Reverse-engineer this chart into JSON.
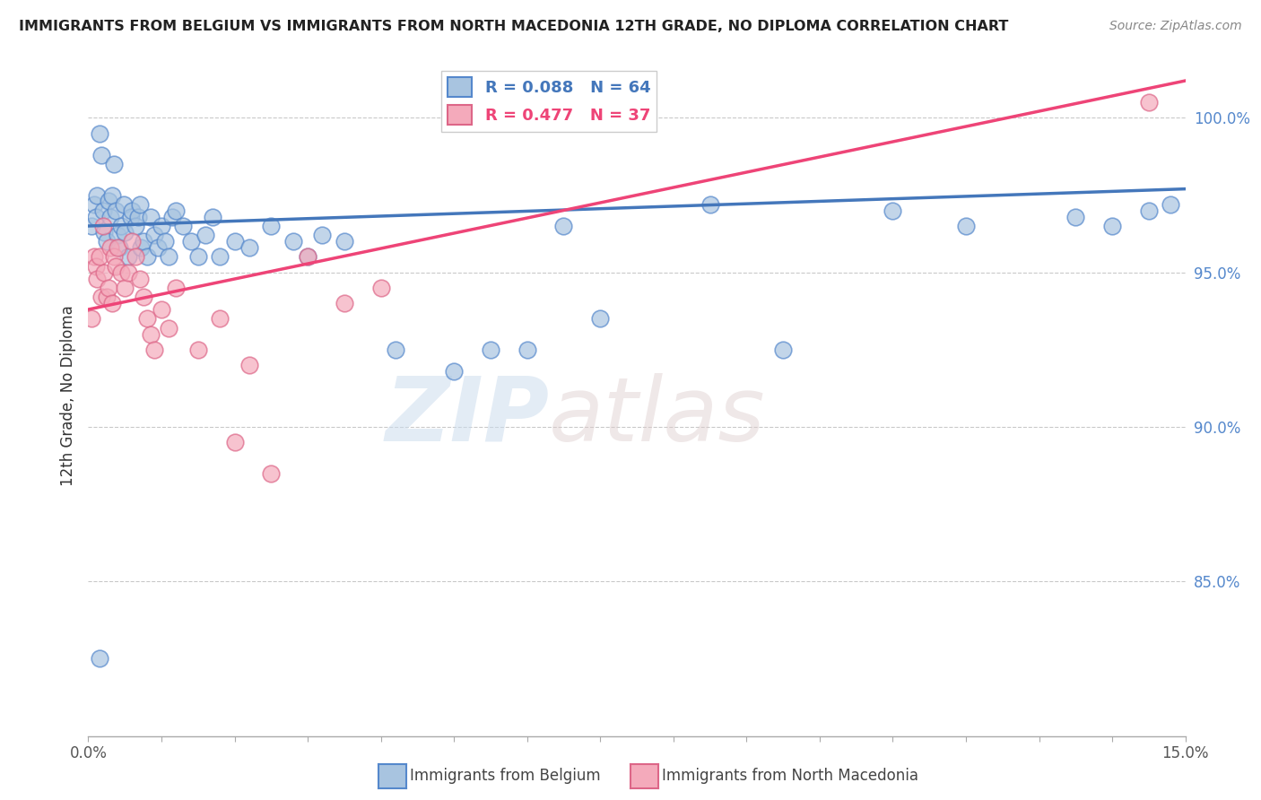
{
  "title": "IMMIGRANTS FROM BELGIUM VS IMMIGRANTS FROM NORTH MACEDONIA 12TH GRADE, NO DIPLOMA CORRELATION CHART",
  "source": "Source: ZipAtlas.com",
  "xlabel_legend1": "Immigrants from Belgium",
  "xlabel_legend2": "Immigrants from North Macedonia",
  "ylabel": "12th Grade, No Diploma",
  "xlim": [
    0.0,
    15.0
  ],
  "ylim": [
    80.0,
    102.0
  ],
  "yticks": [
    85.0,
    90.0,
    95.0,
    100.0
  ],
  "ytick_labels": [
    "85.0%",
    "90.0%",
    "95.0%",
    "100.0%"
  ],
  "color_belgium": "#A8C4E0",
  "color_macedonia": "#F4AABB",
  "color_belgium_edge": "#5588CC",
  "color_macedonia_edge": "#DD6688",
  "color_belgium_line": "#4477BB",
  "color_macedonia_line": "#EE4477",
  "R_belgium": 0.088,
  "N_belgium": 64,
  "R_macedonia": 0.477,
  "N_macedonia": 37,
  "watermark_zip": "ZIP",
  "watermark_atlas": "atlas",
  "background_color": "#FFFFFF",
  "bel_trend_x0": 0.0,
  "bel_trend_y0": 96.5,
  "bel_trend_x1": 15.0,
  "bel_trend_y1": 97.7,
  "mac_trend_x0": 0.0,
  "mac_trend_y0": 93.8,
  "mac_trend_x1": 15.0,
  "mac_trend_y1": 101.2,
  "bel_x": [
    0.05,
    0.08,
    0.1,
    0.12,
    0.15,
    0.18,
    0.2,
    0.22,
    0.25,
    0.28,
    0.3,
    0.32,
    0.35,
    0.38,
    0.4,
    0.42,
    0.45,
    0.48,
    0.5,
    0.55,
    0.58,
    0.6,
    0.65,
    0.68,
    0.7,
    0.72,
    0.75,
    0.8,
    0.85,
    0.9,
    0.95,
    1.0,
    1.05,
    1.1,
    1.15,
    1.2,
    1.3,
    1.4,
    1.5,
    1.6,
    1.7,
    1.8,
    2.0,
    2.2,
    2.5,
    2.8,
    3.0,
    3.2,
    3.5,
    4.2,
    5.0,
    5.5,
    6.0,
    6.5,
    7.0,
    8.5,
    9.5,
    11.0,
    12.0,
    13.5,
    14.0,
    14.5,
    14.8,
    0.15
  ],
  "bel_y": [
    96.5,
    97.2,
    96.8,
    97.5,
    99.5,
    98.8,
    97.0,
    96.3,
    96.0,
    97.3,
    96.8,
    97.5,
    98.5,
    97.0,
    96.2,
    95.8,
    96.5,
    97.2,
    96.3,
    95.5,
    96.8,
    97.0,
    96.5,
    96.8,
    97.2,
    95.8,
    96.0,
    95.5,
    96.8,
    96.2,
    95.8,
    96.5,
    96.0,
    95.5,
    96.8,
    97.0,
    96.5,
    96.0,
    95.5,
    96.2,
    96.8,
    95.5,
    96.0,
    95.8,
    96.5,
    96.0,
    95.5,
    96.2,
    96.0,
    92.5,
    91.8,
    92.5,
    92.5,
    96.5,
    93.5,
    97.2,
    92.5,
    97.0,
    96.5,
    96.8,
    96.5,
    97.0,
    97.2,
    82.5
  ],
  "mac_x": [
    0.05,
    0.08,
    0.1,
    0.12,
    0.15,
    0.18,
    0.2,
    0.22,
    0.25,
    0.28,
    0.3,
    0.32,
    0.35,
    0.38,
    0.4,
    0.45,
    0.5,
    0.55,
    0.6,
    0.65,
    0.7,
    0.75,
    0.8,
    0.85,
    0.9,
    1.0,
    1.1,
    1.2,
    1.5,
    1.8,
    2.0,
    2.2,
    2.5,
    3.0,
    3.5,
    4.0,
    14.5
  ],
  "mac_y": [
    93.5,
    95.5,
    95.2,
    94.8,
    95.5,
    94.2,
    96.5,
    95.0,
    94.2,
    94.5,
    95.8,
    94.0,
    95.5,
    95.2,
    95.8,
    95.0,
    94.5,
    95.0,
    96.0,
    95.5,
    94.8,
    94.2,
    93.5,
    93.0,
    92.5,
    93.8,
    93.2,
    94.5,
    92.5,
    93.5,
    89.5,
    92.0,
    88.5,
    95.5,
    94.0,
    94.5,
    100.5
  ]
}
